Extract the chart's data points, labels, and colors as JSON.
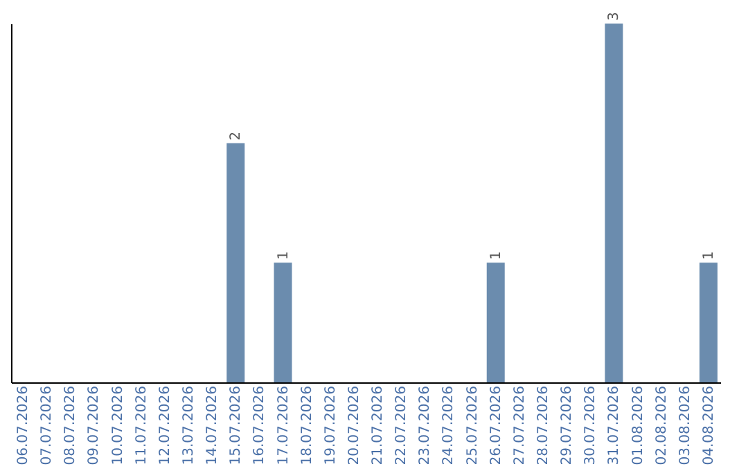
{
  "chart_data": {
    "type": "bar",
    "categories": [
      "06.07.2026",
      "07.07.2026",
      "08.07.2026",
      "09.07.2026",
      "10.07.2026",
      "11.07.2026",
      "12.07.2026",
      "13.07.2026",
      "14.07.2026",
      "15.07.2026",
      "16.07.2026",
      "17.07.2026",
      "18.07.2026",
      "19.07.2026",
      "20.07.2026",
      "21.07.2026",
      "22.07.2026",
      "23.07.2026",
      "24.07.2026",
      "25.07.2026",
      "26.07.2026",
      "27.07.2026",
      "28.07.2026",
      "29.07.2026",
      "30.07.2026",
      "31.07.2026",
      "01.08.2026",
      "02.08.2026",
      "03.08.2026",
      "04.08.2026"
    ],
    "values": [
      0,
      0,
      0,
      0,
      0,
      0,
      0,
      0,
      0,
      2,
      0,
      1,
      0,
      0,
      0,
      0,
      0,
      0,
      0,
      0,
      1,
      0,
      0,
      0,
      0,
      3,
      0,
      0,
      0,
      1
    ],
    "value_labels": [
      null,
      null,
      null,
      null,
      null,
      null,
      null,
      null,
      null,
      "2",
      null,
      "1",
      null,
      null,
      null,
      null,
      null,
      null,
      null,
      null,
      "1",
      null,
      null,
      null,
      null,
      "3",
      null,
      null,
      null,
      "1"
    ],
    "color": "#6b8cae",
    "tick_labels": "x",
    "grid": false
  }
}
